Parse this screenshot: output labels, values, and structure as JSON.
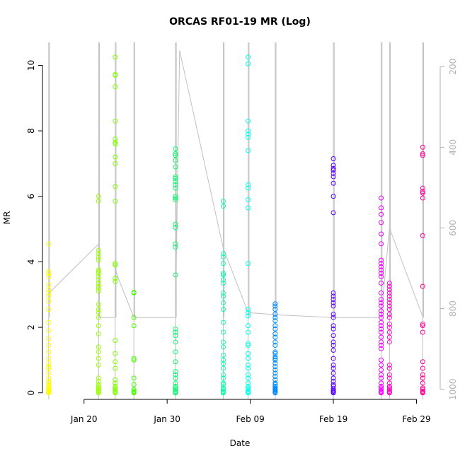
{
  "chart_data": {
    "type": "scatter",
    "title": "ORCAS RF01-19 MR (Log)",
    "xlabel": "Date",
    "ylabel": "MR",
    "x_axis": {
      "start": "2016-01-15",
      "end": "2016-03-02",
      "ticks": [
        {
          "date": "2016-01-20",
          "label": "Jan 20"
        },
        {
          "date": "2016-01-30",
          "label": "Jan 30"
        },
        {
          "date": "2016-02-09",
          "label": "Feb 09"
        },
        {
          "date": "2016-02-19",
          "label": "Feb 19"
        },
        {
          "date": "2016-02-29",
          "label": "Feb 29"
        }
      ]
    },
    "y_axis": {
      "ylim": [
        -0.2,
        10.7
      ],
      "ticks": [
        0,
        2,
        4,
        6,
        8,
        10
      ]
    },
    "y2_axis": {
      "ylim": [
        1025,
        140
      ],
      "ticks": [
        200,
        400,
        600,
        800,
        1000
      ],
      "reversed": true
    },
    "flights": [
      {
        "date": "2016-01-15 18:00",
        "color": "#ffff00",
        "mr": [
          0,
          0.02,
          0.04,
          0.06,
          0.08,
          0.1,
          0.12,
          0.15,
          0.2,
          0.25,
          0.3,
          0.35,
          0.45,
          0.6,
          0.75,
          0.8,
          0.9,
          1.05,
          1.25,
          1.45,
          1.65,
          1.9,
          2.15,
          2.55,
          2.8,
          2.95,
          3.05,
          3.15,
          3.3,
          3.55,
          3.65,
          3.7,
          4.55
        ]
      },
      {
        "date": "2016-01-21 18:00",
        "color": "#9fff00",
        "mr": [
          0,
          0.02,
          0.05,
          0.08,
          0.12,
          0.15,
          0.2,
          0.25,
          0.35,
          0.45,
          0.85,
          1.05,
          1.25,
          1.4,
          1.8,
          2.05,
          2.3,
          2.45,
          2.55,
          2.7,
          3.1,
          3.2,
          3.25,
          3.35,
          3.45,
          3.55,
          3.65,
          3.7,
          3.75,
          4.05,
          4.15,
          4.25,
          4.35,
          5.85,
          6.0
        ]
      },
      {
        "date": "2016-01-23 18:00",
        "color": "#7fff00",
        "mr": [
          0,
          0.02,
          0.05,
          0.1,
          0.15,
          0.2,
          0.3,
          0.4,
          0.75,
          0.95,
          1.2,
          1.6,
          3.4,
          3.5,
          3.9,
          3.95,
          5.85,
          6.3,
          7.0,
          7.2,
          7.6,
          7.65,
          7.75,
          8.3,
          9.35,
          9.7,
          9.72,
          10.25
        ]
      },
      {
        "date": "2016-01-26 00:00",
        "color": "#44ff00",
        "mr": [
          0,
          0.02,
          0.05,
          0.1,
          0.25,
          0.45,
          1.0,
          1.05,
          2.05,
          2.3,
          3.05,
          3.07
        ]
      },
      {
        "date": "2016-01-31 00:00",
        "color": "#00ff66",
        "mr": [
          0,
          0.02,
          0.05,
          0.1,
          0.15,
          0.2,
          0.3,
          0.45,
          0.55,
          0.65,
          0.95,
          1.25,
          1.55,
          1.75,
          1.85,
          1.95,
          3.6,
          4.45,
          4.55,
          5.05,
          5.15,
          5.9,
          5.95,
          6.0,
          6.25,
          6.35,
          6.45,
          6.55,
          6.6,
          6.9,
          7.1,
          7.25,
          7.3,
          7.45
        ]
      },
      {
        "date": "2016-02-05 18:00",
        "color": "#00ffa8",
        "mr": [
          0,
          0.02,
          0.05,
          0.1,
          0.15,
          0.25,
          0.3,
          0.45,
          0.55,
          0.75,
          0.9,
          1.0,
          1.15,
          1.4,
          1.55,
          1.85,
          2.15,
          2.55,
          2.75,
          2.95,
          3.05,
          3.35,
          3.45,
          3.6,
          3.65,
          3.95,
          4.15,
          4.25,
          5.7,
          5.85
        ]
      },
      {
        "date": "2016-02-08 18:00",
        "color": "#00ffee",
        "mr": [
          0,
          0.02,
          0.05,
          0.1,
          0.15,
          0.2,
          0.3,
          0.45,
          0.55,
          0.75,
          0.85,
          1.05,
          1.2,
          1.45,
          1.5,
          1.85,
          2.05,
          2.35,
          2.45,
          2.55,
          3.95,
          5.65,
          5.9,
          6.25,
          6.35,
          7.4,
          7.8,
          7.9,
          8.0,
          8.3,
          10.05,
          10.25
        ]
      },
      {
        "date": "2016-02-12 00:00",
        "color": "#0088ff",
        "mr": [
          0,
          0.02,
          0.05,
          0.08,
          0.1,
          0.12,
          0.15,
          0.2,
          0.25,
          0.3,
          0.4,
          0.5,
          0.6,
          0.7,
          0.8,
          0.9,
          1.0,
          1.05,
          1.1,
          1.2,
          1.25,
          1.45,
          1.55,
          1.7,
          1.8,
          1.95,
          2.05,
          2.2,
          2.3,
          2.4,
          2.55,
          2.65,
          2.72
        ]
      },
      {
        "date": "2016-02-19 00:00",
        "color": "#5500ff",
        "mr": [
          0,
          0.02,
          0.05,
          0.08,
          0.12,
          0.2,
          0.25,
          0.35,
          0.45,
          0.6,
          0.75,
          0.85,
          1.05,
          1.3,
          1.45,
          1.55,
          1.75,
          1.95,
          2.05,
          2.3,
          2.4,
          2.65,
          2.75,
          2.85,
          2.95,
          3.05,
          5.5,
          6.0,
          6.4,
          6.6,
          6.7,
          6.8,
          6.85,
          6.95,
          7.15
        ]
      },
      {
        "date": "2016-02-24 18:00",
        "color": "#ee00ff",
        "mr": [
          0,
          0.02,
          0.05,
          0.1,
          0.15,
          0.2,
          0.3,
          0.45,
          0.55,
          0.7,
          0.85,
          1.0,
          1.35,
          1.45,
          1.55,
          1.7,
          1.85,
          1.95,
          2.05,
          2.15,
          2.3,
          2.4,
          2.5,
          2.65,
          2.75,
          2.85,
          3.05,
          3.35,
          3.55,
          3.65,
          3.75,
          3.85,
          3.95,
          4.05,
          4.55,
          4.85,
          5.2,
          5.45,
          5.65,
          5.95
        ]
      },
      {
        "date": "2016-02-25 18:00",
        "color": "#ff00cc",
        "mr": [
          0,
          0.02,
          0.05,
          0.1,
          0.15,
          0.2,
          0.3,
          0.45,
          0.55,
          0.75,
          0.85,
          1.55,
          1.7,
          1.85,
          2.0,
          2.1,
          2.3,
          2.4,
          2.55,
          2.65,
          2.75,
          2.85,
          2.95,
          3.05,
          3.15,
          3.25,
          3.35
        ]
      },
      {
        "date": "2016-02-29 18:00",
        "color": "#ff0099",
        "mr": [
          0,
          0.02,
          0.05,
          0.1,
          0.15,
          0.3,
          0.45,
          0.55,
          0.75,
          0.95,
          1.85,
          2.05,
          2.1,
          3.25,
          4.8,
          5.95,
          6.1,
          6.15,
          6.25,
          7.25,
          7.3,
          7.5
        ]
      }
    ],
    "pressure_trace": [
      {
        "date": "2016-01-15 18:00",
        "p": 762
      },
      {
        "date": "2016-01-21 18:00",
        "p": 640
      },
      {
        "date": "2016-01-21 18:00",
        "p": 822
      },
      {
        "date": "2016-01-23 18:00",
        "p": 822
      },
      {
        "date": "2016-01-23 18:00",
        "p": 698
      },
      {
        "date": "2016-01-24 00:00",
        "p": 718
      },
      {
        "date": "2016-01-26 00:00",
        "p": 822
      },
      {
        "date": "2016-01-31 00:00",
        "p": 822
      },
      {
        "date": "2016-01-31 12:00",
        "p": 160
      },
      {
        "date": "2016-02-05 18:00",
        "p": 650
      },
      {
        "date": "2016-02-08 18:00",
        "p": 810
      },
      {
        "date": "2016-02-12 00:00",
        "p": 815
      },
      {
        "date": "2016-02-19 00:00",
        "p": 822
      },
      {
        "date": "2016-02-24 18:00",
        "p": 822
      },
      {
        "date": "2016-02-25 18:00",
        "p": 600
      },
      {
        "date": "2016-02-29 18:00",
        "p": 820
      }
    ]
  }
}
